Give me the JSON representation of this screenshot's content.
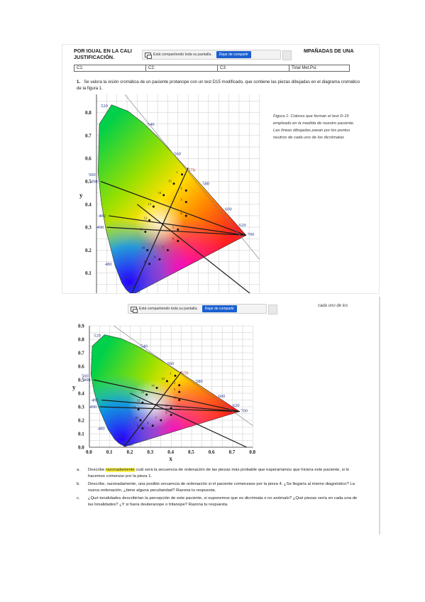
{
  "shot1": {
    "header_left_line1": "POR IGUAL EN LA CALI",
    "header_left_line2": "JUSTIFICACIÓN.",
    "header_right": "MPAÑADAS DE UNA",
    "share_bar": {
      "text": "Está compartiendo toda su pantalla.",
      "stop_label": "Dejar de compartir"
    },
    "table": [
      "C1:",
      "C2:",
      "C3:",
      "Total Met.Psi:"
    ],
    "question_number": "1.",
    "question_text": "Se valora la visión cromática de un paciente protanope con un test D15 modificado, que contiene las piezas dibujadas en el diagrama cromático de la figura 1.",
    "caption": "Figura 1: Colores que forman el test D-15 empleado en la medida de nuestro paciente. Las líneas dibujadas pasan por los puntos neutros de cada uno de los dicrómatas"
  },
  "shot2": {
    "cut_text": "cada uno de los",
    "share_bar": {
      "text": "Está compartiendo toda su pantalla.",
      "stop_label": "Dejar de compartir"
    },
    "questions": [
      {
        "letter": "a.",
        "pre": "Describe ",
        "highlight": "razonadamente",
        "post": " cuál será la secuencia de ordenación de las piezas más probable que esperaríamos que hiciera este paciente, si lo hacemos comenzar por la pieza 1."
      },
      {
        "letter": "b.",
        "pre": "",
        "highlight": "",
        "post": "Describe, razonadamente, una posible secuencia de ordenación si el paciente comenzase por la pieza 4. ¿Se llegaría al mismo diagnóstico? La nueva ordenación, ¿tiene alguna peculiaridad? Razona tu respuesta."
      },
      {
        "letter": "c.",
        "pre": "",
        "highlight": "",
        "post": "¿Qué tonalidades describirían la percepción de este paciente, si suponemos que es dicrómata o no anómalo? ¿Qué piezas vería en cada una de las tonalidades? ¿Y si fuera deuteranope o tritanope? Razona tu respuesta."
      }
    ]
  },
  "chart_data": [
    {
      "type": "scatter",
      "x_range": [
        0.0,
        0.8
      ],
      "y_range": [
        0.0,
        0.9
      ],
      "x_ticks": [
        "0.0",
        "0.1",
        "0.2",
        "0.3",
        "0.4",
        "0.5",
        "0.6",
        "0.7",
        "0.8"
      ],
      "y_ticks": [
        "0.0",
        "0.1",
        "0.2",
        "0.3",
        "0.4",
        "0.5",
        "0.6",
        "0.7",
        "0.8",
        "0.9"
      ],
      "xlabel": "x",
      "ylabel": "y",
      "wavelength_labels": [
        {
          "label": "380",
          "x": 0.17,
          "y": 0.02
        },
        {
          "label": "460",
          "x": 0.14,
          "y": 0.04
        },
        {
          "label": "470",
          "x": 0.12,
          "y": 0.08
        },
        {
          "label": "480",
          "x": 0.09,
          "y": 0.14
        },
        {
          "label": "490",
          "x": 0.05,
          "y": 0.3
        },
        {
          "label": "492",
          "x": 0.06,
          "y": 0.35
        },
        {
          "label": "498",
          "x": 0.02,
          "y": 0.5
        },
        {
          "label": "500",
          "x": 0.01,
          "y": 0.53
        },
        {
          "label": "520",
          "x": 0.07,
          "y": 0.83
        },
        {
          "label": "540",
          "x": 0.24,
          "y": 0.75
        },
        {
          "label": "560",
          "x": 0.37,
          "y": 0.62
        },
        {
          "label": "570",
          "x": 0.44,
          "y": 0.55
        },
        {
          "label": "580",
          "x": 0.51,
          "y": 0.49
        },
        {
          "label": "600",
          "x": 0.62,
          "y": 0.38
        },
        {
          "label": "620",
          "x": 0.69,
          "y": 0.31
        },
        {
          "label": "700",
          "x": 0.73,
          "y": 0.27
        }
      ],
      "pieces": [
        {
          "label": "1",
          "x": 0.42,
          "y": 0.53
        },
        {
          "label": "2",
          "x": 0.44,
          "y": 0.46
        },
        {
          "label": "3",
          "x": 0.44,
          "y": 0.41
        },
        {
          "label": "4",
          "x": 0.44,
          "y": 0.35
        },
        {
          "label": "5",
          "x": 0.4,
          "y": 0.29
        },
        {
          "label": "6",
          "x": 0.4,
          "y": 0.24
        },
        {
          "label": "7",
          "x": 0.35,
          "y": 0.2
        },
        {
          "label": "8",
          "x": 0.31,
          "y": 0.16
        },
        {
          "label": "9",
          "x": 0.26,
          "y": 0.14
        },
        {
          "label": "10",
          "x": 0.25,
          "y": 0.2
        },
        {
          "label": "11",
          "x": 0.24,
          "y": 0.28
        },
        {
          "label": "12",
          "x": 0.26,
          "y": 0.33
        },
        {
          "label": "13",
          "x": 0.28,
          "y": 0.39
        },
        {
          "label": "14",
          "x": 0.33,
          "y": 0.44
        },
        {
          "label": "15",
          "x": 0.38,
          "y": 0.49
        }
      ],
      "confusion_lines": [
        {
          "from": [
            0.02,
            0.5
          ],
          "to": [
            0.735,
            0.265
          ]
        },
        {
          "from": [
            0.06,
            0.35
          ],
          "to": [
            0.735,
            0.265
          ]
        },
        {
          "from": [
            0.05,
            0.3
          ],
          "to": [
            0.735,
            0.265
          ]
        },
        {
          "from": [
            0.45,
            0.56
          ],
          "to": [
            0.17,
            0.005
          ]
        },
        {
          "from": [
            0.2,
            0.4
          ],
          "to": [
            0.77,
            0.0
          ]
        }
      ]
    }
  ]
}
